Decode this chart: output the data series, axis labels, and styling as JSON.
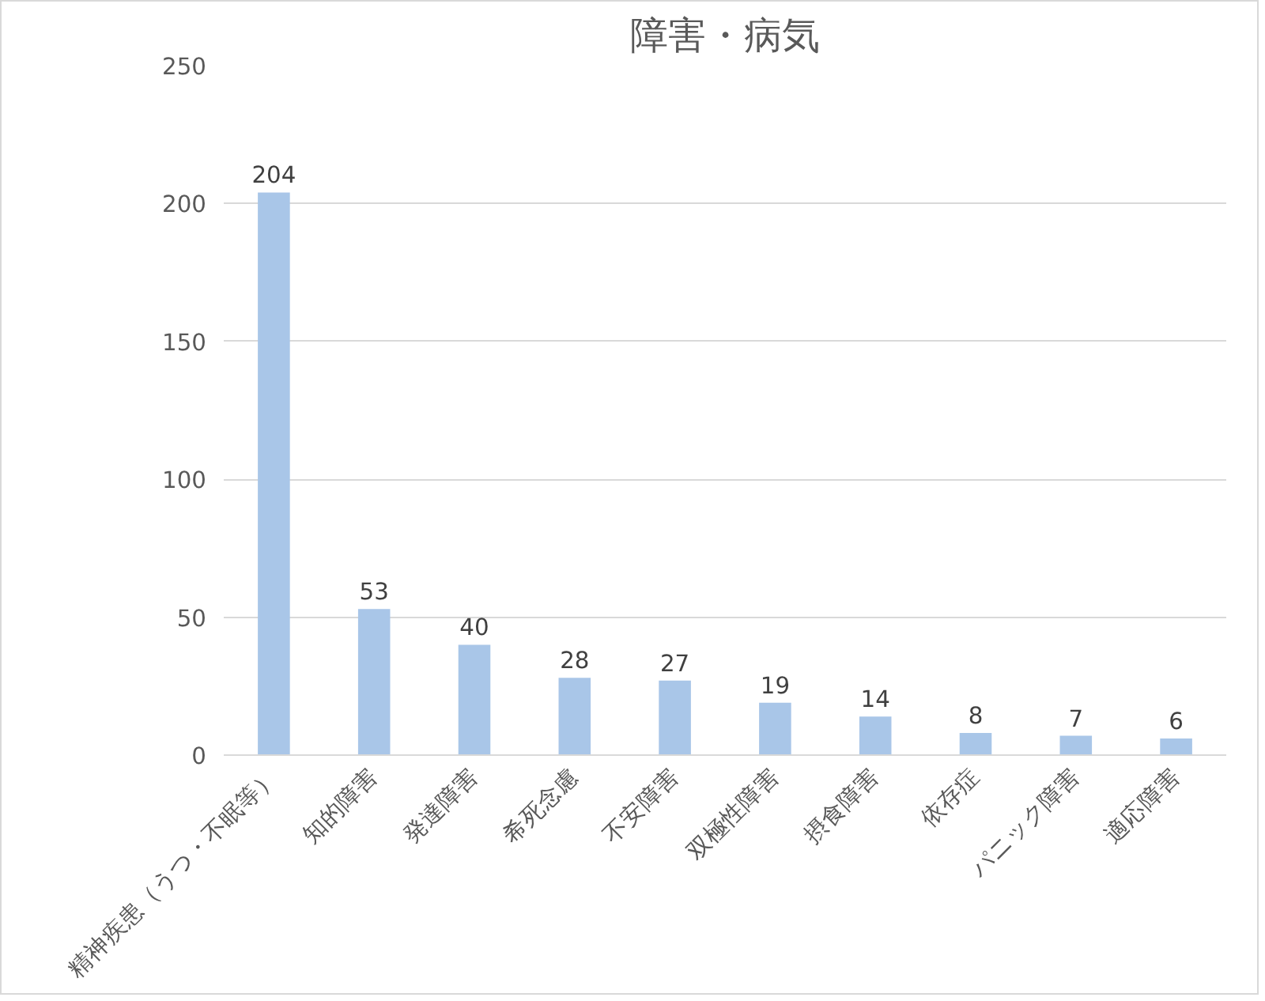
{
  "chart_data": {
    "type": "bar",
    "title": "障害・病気",
    "categories": [
      "精神疾患（うつ・不眠等）",
      "知的障害",
      "発達障害",
      "希死念慮",
      "不安障害",
      "双極性障害",
      "摂食障害",
      "依存症",
      "パニック障害",
      "適応障害"
    ],
    "values": [
      204,
      53,
      40,
      28,
      27,
      19,
      14,
      8,
      7,
      6
    ],
    "color": "#a9c6e8",
    "ylim": [
      0,
      250
    ],
    "yticks": [
      0,
      50,
      100,
      150,
      200,
      250
    ],
    "grid": "y",
    "data_labels": true
  }
}
